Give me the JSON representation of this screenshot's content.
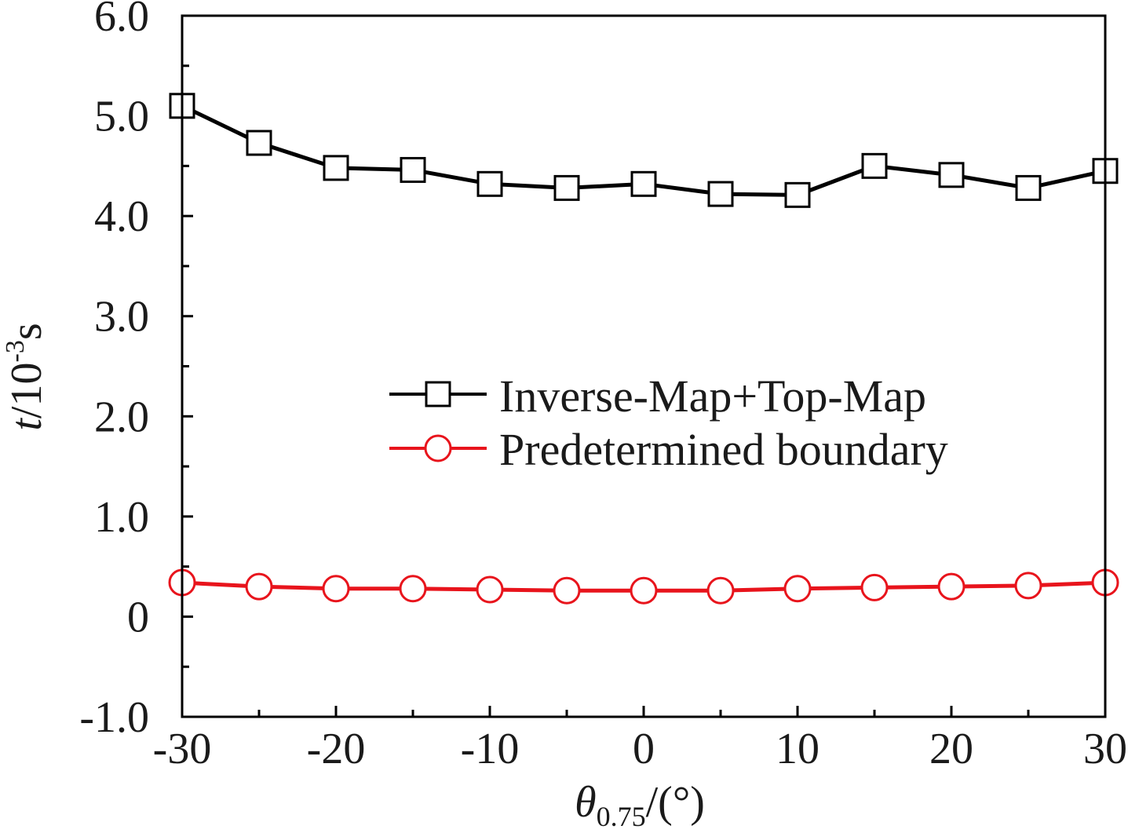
{
  "chart_data": {
    "type": "line",
    "xlabel": "θ0.75/(°)",
    "xlabel_parts": {
      "symbol": "θ",
      "subscript": "0.75",
      "unit": "/(°)"
    },
    "ylabel": "t/10-3s",
    "ylabel_parts": {
      "symbol": "t",
      "base": "/10",
      "exponent": "-3",
      "unit": "s"
    },
    "xlim": [
      -30,
      30
    ],
    "ylim": [
      -1.0,
      6.0
    ],
    "x_ticks": [
      -30,
      -20,
      -10,
      0,
      10,
      20,
      30
    ],
    "x_tick_labels": [
      "-30",
      "-20",
      "-10",
      "0",
      "10",
      "20",
      "30"
    ],
    "y_ticks": [
      -1.0,
      0,
      1.0,
      2.0,
      3.0,
      4.0,
      5.0,
      6.0
    ],
    "y_tick_labels": [
      "-1.0",
      "0",
      "1.0",
      "2.0",
      "3.0",
      "4.0",
      "5.0",
      "6.0"
    ],
    "x_minor_step": 5,
    "y_minor_step": 0.5,
    "grid": false,
    "legend_position": "center-right",
    "x": [
      -30,
      -25,
      -20,
      -15,
      -10,
      -5,
      0,
      5,
      10,
      15,
      20,
      25,
      30
    ],
    "series": [
      {
        "name": "Inverse-Map+Top-Map",
        "color": "#000000",
        "marker": "square",
        "values": [
          5.1,
          4.73,
          4.48,
          4.46,
          4.32,
          4.28,
          4.32,
          4.22,
          4.21,
          4.5,
          4.41,
          4.28,
          4.45
        ]
      },
      {
        "name": "Predetermined boundary",
        "color": "#e8141c",
        "marker": "circle",
        "values": [
          0.34,
          0.3,
          0.28,
          0.28,
          0.27,
          0.26,
          0.26,
          0.26,
          0.28,
          0.29,
          0.3,
          0.31,
          0.34
        ]
      }
    ]
  }
}
